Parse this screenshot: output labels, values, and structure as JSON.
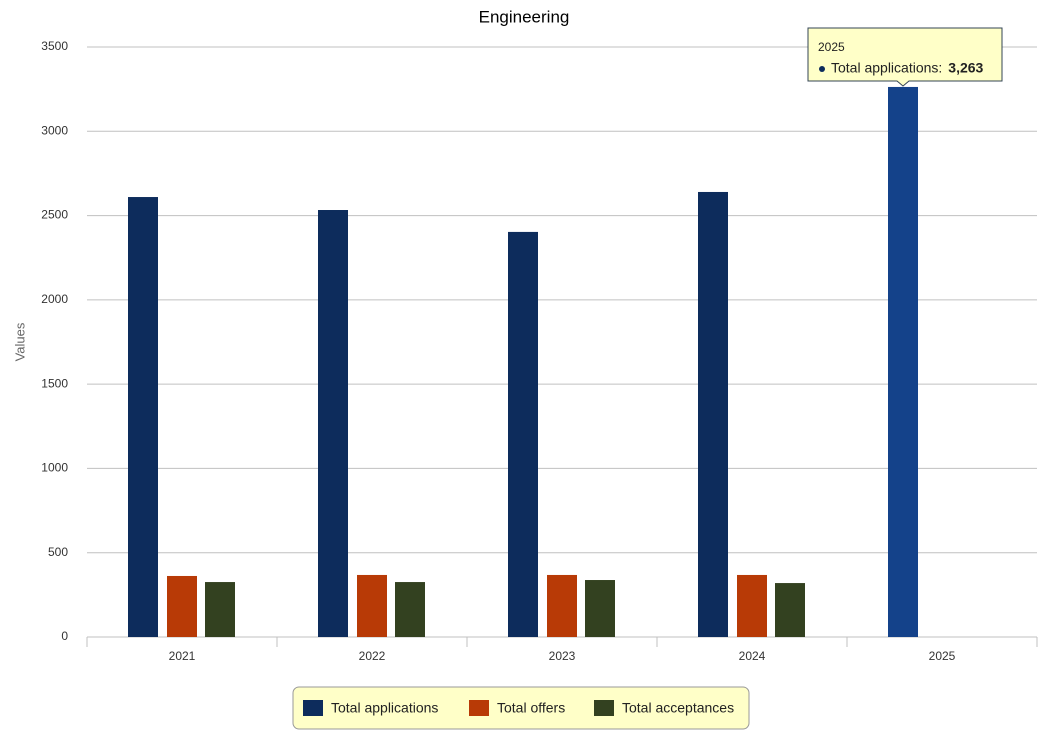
{
  "chart_data": {
    "type": "bar",
    "title": "Engineering",
    "y_label": "Values",
    "categories": [
      "2021",
      "2022",
      "2023",
      "2024",
      "2025"
    ],
    "series": [
      {
        "name": "Total applications",
        "color": "#0d2c5c",
        "values": [
          2610,
          2533,
          2403,
          2640,
          3263
        ],
        "value_labels": [
          null,
          null,
          null,
          null,
          "3,263"
        ]
      },
      {
        "name": "Total offers",
        "color": "#b83a06",
        "values": [
          362,
          368,
          368,
          368,
          null
        ]
      },
      {
        "name": "Total acceptances",
        "color": "#334120",
        "values": [
          326,
          326,
          338,
          320,
          null
        ]
      }
    ],
    "ylim": [
      0,
      3500
    ],
    "yticks": [
      0,
      500,
      1000,
      1500,
      2000,
      2500,
      3000,
      3500
    ],
    "grid": true,
    "legend": "bottom",
    "tooltip": {
      "label": "Total applications:"
    }
  }
}
